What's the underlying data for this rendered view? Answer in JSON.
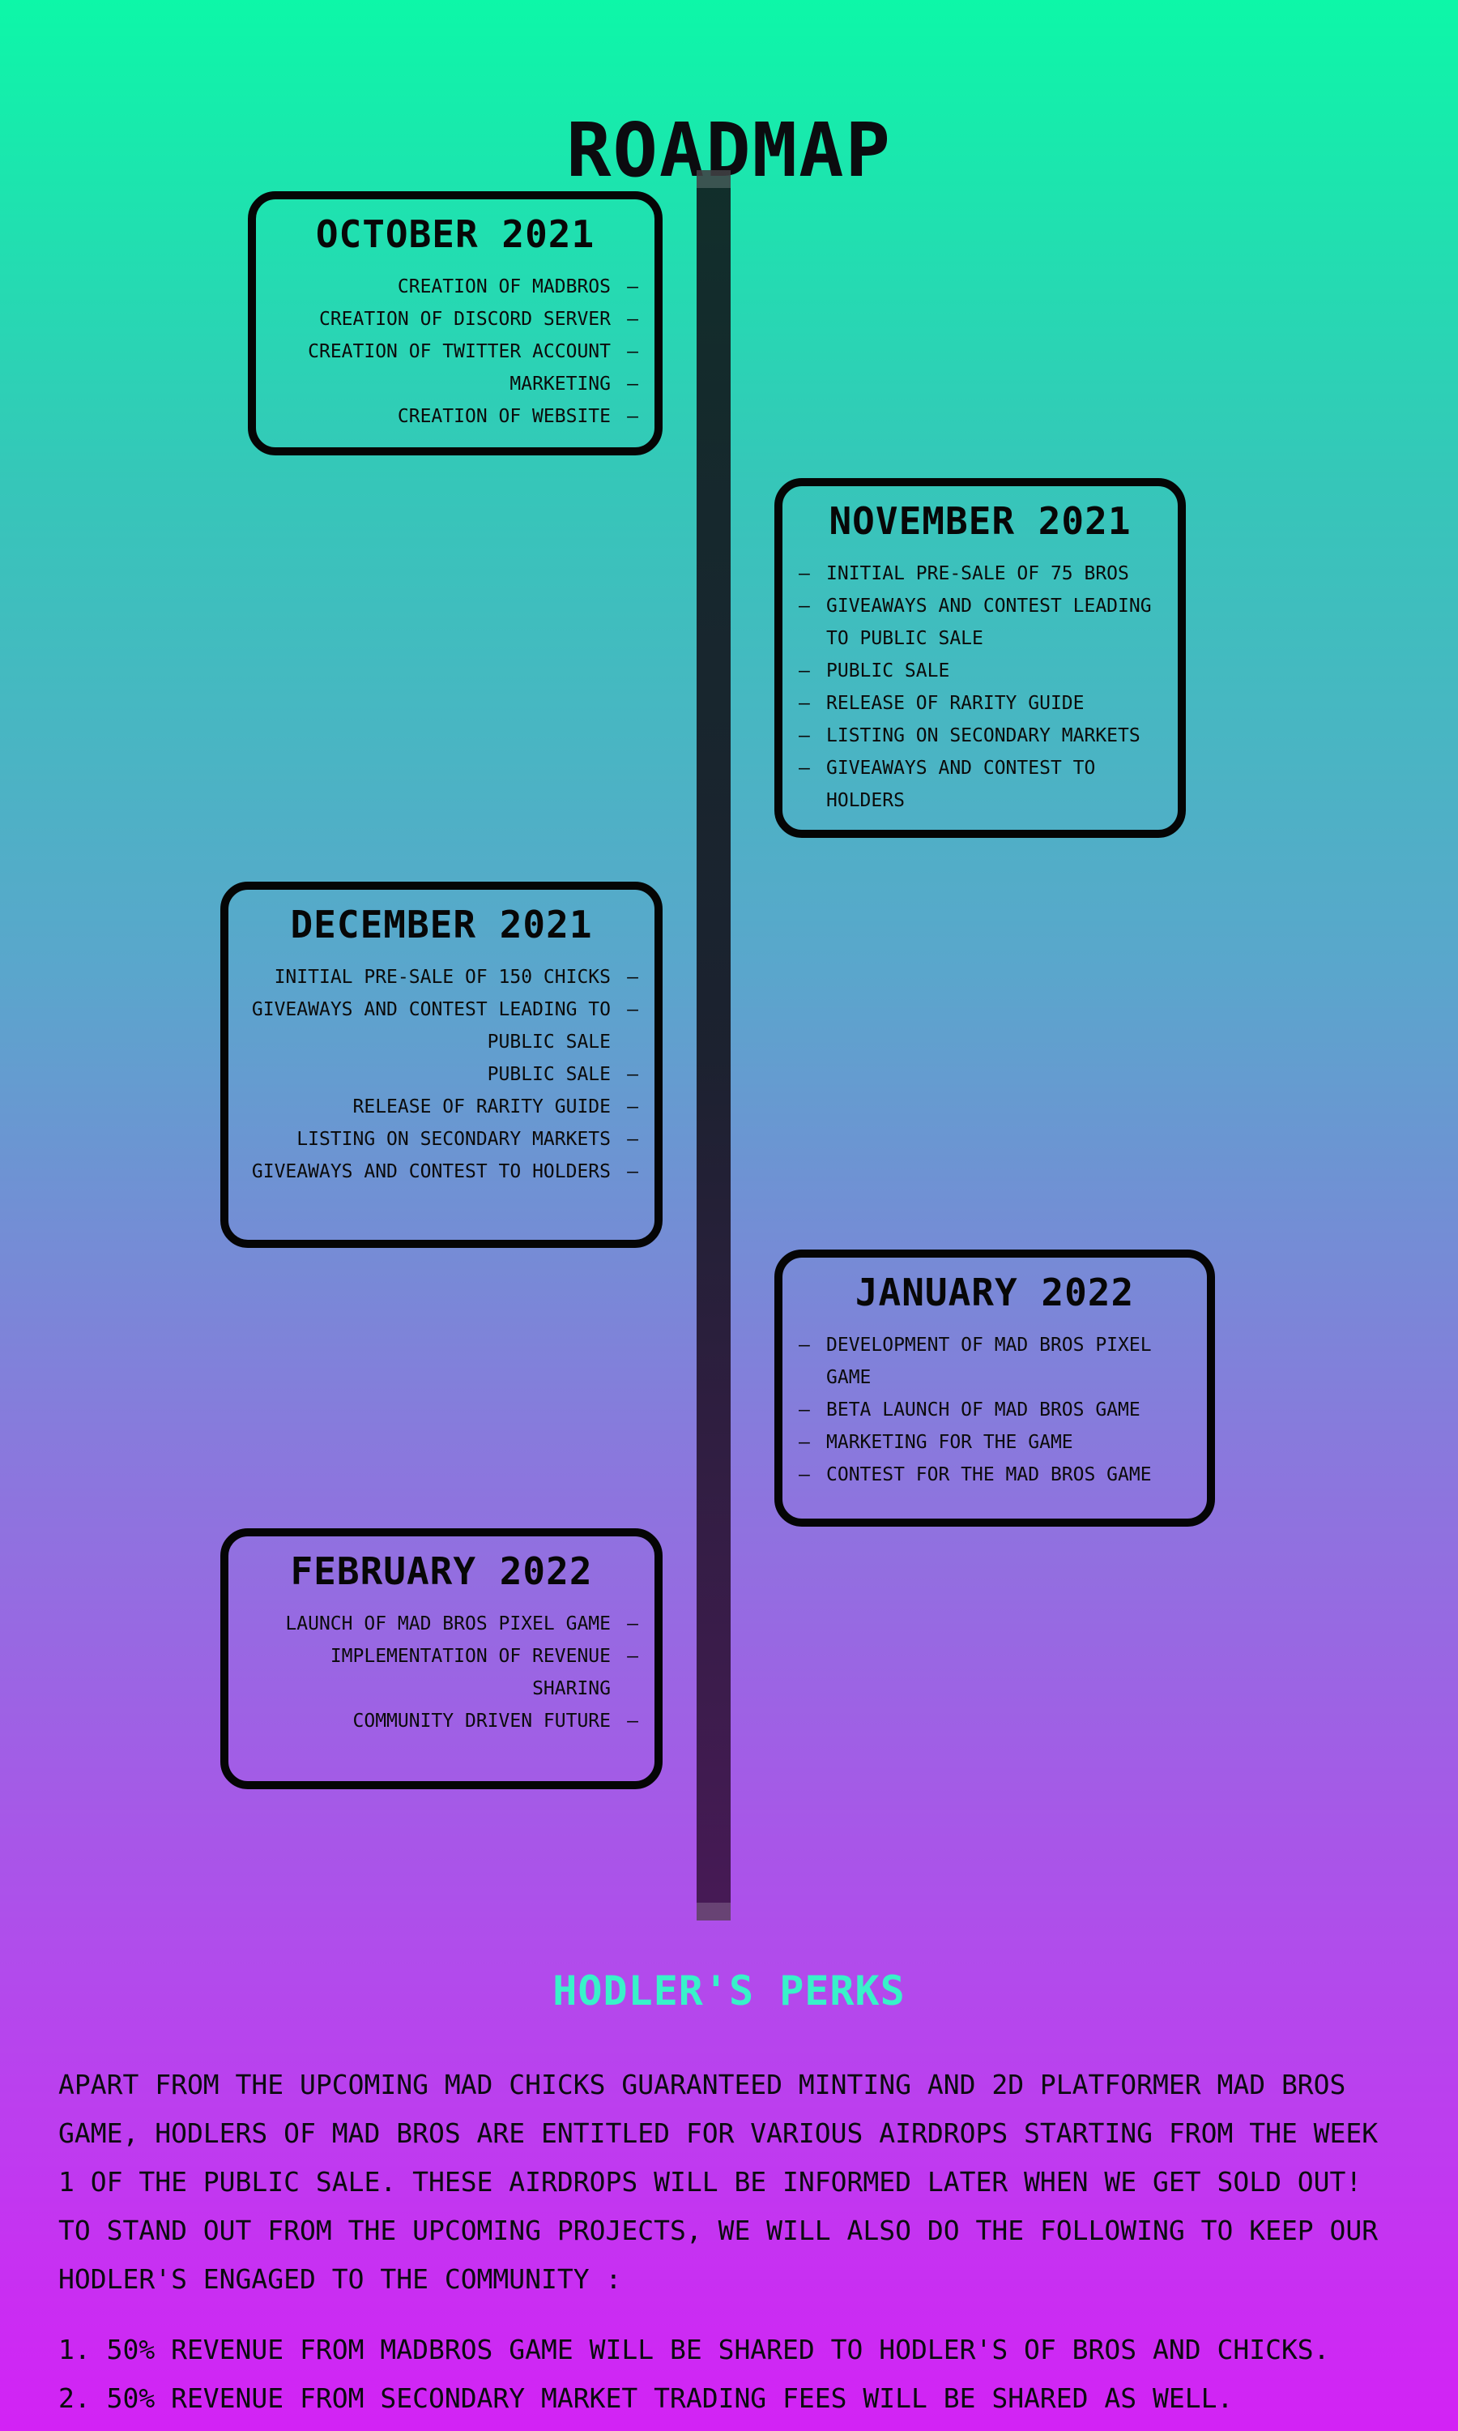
{
  "roadmap": {
    "title": "ROADMAP",
    "milestones": [
      {
        "title": "OCTOBER 2021",
        "items": [
          "CREATION OF MADBROS",
          "CREATION OF DISCORD SERVER",
          "CREATION OF TWITTER ACCOUNT",
          "MARKETING",
          "CREATION OF WEBSITE"
        ]
      },
      {
        "title": "NOVEMBER 2021",
        "items": [
          "INITIAL PRE-SALE OF 75 BROS",
          "GIVEAWAYS AND CONTEST LEADING TO PUBLIC SALE",
          "PUBLIC SALE",
          "RELEASE OF RARITY GUIDE",
          "LISTING ON SECONDARY MARKETS",
          "GIVEAWAYS AND CONTEST TO HOLDERS"
        ]
      },
      {
        "title": "DECEMBER 2021",
        "items": [
          "INITIAL PRE-SALE OF 150 CHICKS",
          "GIVEAWAYS AND CONTEST LEADING TO PUBLIC SALE",
          "PUBLIC SALE",
          "RELEASE OF RARITY GUIDE",
          "LISTING ON SECONDARY MARKETS",
          "GIVEAWAYS AND CONTEST TO HOLDERS"
        ]
      },
      {
        "title": "JANUARY 2022",
        "items": [
          "DEVELOPMENT OF MAD BROS PIXEL GAME",
          "BETA LAUNCH OF MAD BROS GAME",
          "MARKETING FOR THE GAME",
          "CONTEST FOR THE MAD BROS GAME"
        ]
      },
      {
        "title": "FEBRUARY 2022",
        "items": [
          "LAUNCH OF MAD BROS PIXEL GAME",
          "IMPLEMENTATION OF REVENUE SHARING",
          "COMMUNITY DRIVEN FUTURE"
        ]
      }
    ]
  },
  "perks": {
    "title": "HODLER'S PERKS",
    "description": "APART FROM THE UPCOMING MAD CHICKS GUARANTEED MINTING AND 2D PLATFORMER MAD BROS GAME, HODLERS OF MAD BROS ARE ENTITLED FOR VARIOUS AIRDROPS STARTING FROM THE WEEK 1 OF THE PUBLIC SALE. THESE AIRDROPS WILL BE INFORMED LATER WHEN WE GET SOLD OUT! TO STAND OUT FROM THE UPCOMING PROJECTS, WE WILL ALSO DO THE FOLLOWING TO KEEP OUR HODLER'S ENGAGED TO THE COMMUNITY :",
    "items": [
      "1. 50% REVENUE FROM MADBROS GAME WILL BE SHARED TO HODLER'S OF BROS AND CHICKS.",
      "2. 50% REVENUE FROM SECONDARY MARKET TRADING FEES WILL BE SHARED AS WELL."
    ]
  }
}
